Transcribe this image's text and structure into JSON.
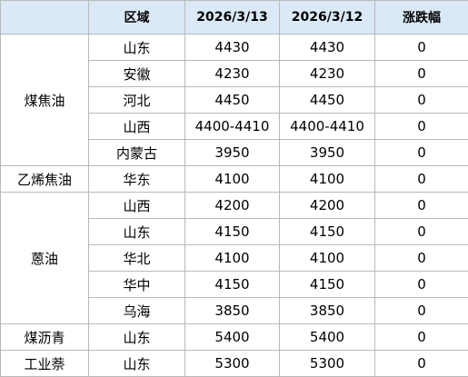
{
  "colors": {
    "border": "#b9b9b9",
    "header_fill": "#dbe9f7",
    "text": "#000000"
  },
  "header": {
    "category": "",
    "region": "区域",
    "date1": "2026/3/13",
    "date2": "2026/3/12",
    "change": "涨跌幅"
  },
  "groups": [
    {
      "category": "煤焦油",
      "rows": [
        {
          "region": "山东",
          "date1": "4430",
          "date2": "4430",
          "change": "0"
        },
        {
          "region": "安徽",
          "date1": "4230",
          "date2": "4230",
          "change": "0"
        },
        {
          "region": "河北",
          "date1": "4450",
          "date2": "4450",
          "change": "0"
        },
        {
          "region": "山西",
          "date1": "4400-4410",
          "date2": "4400-4410",
          "change": "0"
        },
        {
          "region": "内蒙古",
          "date1": "3950",
          "date2": "3950",
          "change": "0"
        }
      ]
    },
    {
      "category": "乙烯焦油",
      "rows": [
        {
          "region": "华东",
          "date1": "4100",
          "date2": "4100",
          "change": "0"
        }
      ]
    },
    {
      "category": "蒽油",
      "rows": [
        {
          "region": "山西",
          "date1": "4200",
          "date2": "4200",
          "change": "0"
        },
        {
          "region": "山东",
          "date1": "4150",
          "date2": "4150",
          "change": "0"
        },
        {
          "region": "华北",
          "date1": "4100",
          "date2": "4100",
          "change": "0"
        },
        {
          "region": "华中",
          "date1": "4150",
          "date2": "4150",
          "change": "0"
        },
        {
          "region": "乌海",
          "date1": "3850",
          "date2": "3850",
          "change": "0"
        }
      ]
    },
    {
      "category": "煤沥青",
      "rows": [
        {
          "region": "山东",
          "date1": "5400",
          "date2": "5400",
          "change": "0"
        }
      ]
    },
    {
      "category": "工业萘",
      "rows": [
        {
          "region": "山东",
          "date1": "5300",
          "date2": "5300",
          "change": "0"
        }
      ]
    }
  ]
}
